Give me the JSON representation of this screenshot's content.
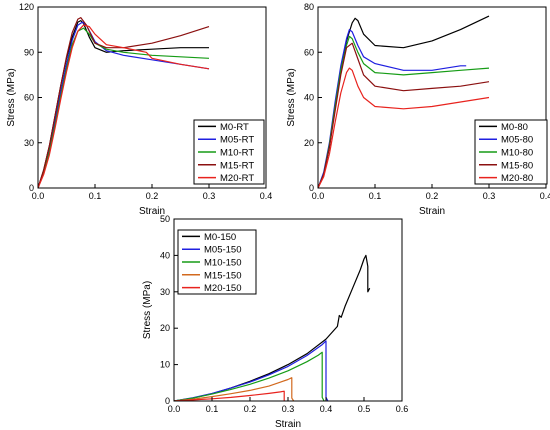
{
  "chart_data": [
    {
      "type": "line",
      "xlabel": "Strain",
      "ylabel": "Stress (MPa)",
      "xlim": [
        0,
        0.4
      ],
      "ylim": [
        0,
        120
      ],
      "xticks": [
        "0.0",
        "0.1",
        "0.2",
        "0.3",
        "0.4"
      ],
      "yticks": [
        "0",
        "30",
        "60",
        "90",
        "120"
      ],
      "grid": false,
      "legend_position": "bottom-right",
      "series": [
        {
          "name": "M0-RT",
          "color": "#000000",
          "x": [
            0,
            0.01,
            0.02,
            0.03,
            0.04,
            0.05,
            0.06,
            0.07,
            0.075,
            0.08,
            0.09,
            0.1,
            0.12,
            0.15,
            0.2,
            0.25,
            0.3
          ],
          "y": [
            0,
            12,
            28,
            48,
            68,
            86,
            100,
            110,
            111,
            109,
            100,
            93,
            90,
            91,
            92,
            93,
            93
          ]
        },
        {
          "name": "M05-RT",
          "color": "#1f1fe0",
          "x": [
            0,
            0.01,
            0.02,
            0.03,
            0.04,
            0.05,
            0.06,
            0.07,
            0.078,
            0.085,
            0.1,
            0.12,
            0.15,
            0.2,
            0.25,
            0.3
          ],
          "y": [
            0,
            11,
            26,
            45,
            64,
            82,
            98,
            108,
            110,
            108,
            97,
            91,
            88,
            85,
            82,
            79
          ]
        },
        {
          "name": "M10-RT",
          "color": "#169c16",
          "x": [
            0,
            0.01,
            0.02,
            0.03,
            0.04,
            0.05,
            0.06,
            0.07,
            0.08,
            0.09,
            0.1,
            0.12,
            0.15,
            0.2,
            0.25,
            0.3
          ],
          "y": [
            0,
            10,
            24,
            42,
            61,
            79,
            95,
            104,
            106,
            102,
            96,
            92,
            90,
            88,
            87,
            86
          ]
        },
        {
          "name": "M15-RT",
          "color": "#8b1010",
          "x": [
            0,
            0.01,
            0.02,
            0.03,
            0.04,
            0.05,
            0.06,
            0.07,
            0.075,
            0.085,
            0.1,
            0.12,
            0.15,
            0.2,
            0.25,
            0.3
          ],
          "y": [
            0,
            12,
            28,
            48,
            68,
            87,
            103,
            112,
            113,
            108,
            96,
            93,
            93,
            96,
            101,
            107
          ]
        },
        {
          "name": "M20-RT",
          "color": "#e8231e",
          "x": [
            0,
            0.01,
            0.02,
            0.03,
            0.04,
            0.05,
            0.06,
            0.07,
            0.08,
            0.09,
            0.1,
            0.12,
            0.15,
            0.19,
            0.2,
            0.25,
            0.3
          ],
          "y": [
            0,
            9,
            22,
            40,
            59,
            77,
            93,
            104,
            108,
            107,
            102,
            95,
            93,
            90,
            86,
            82,
            79
          ]
        }
      ]
    },
    {
      "type": "line",
      "xlabel": "Strain",
      "ylabel": "Stress (MPa)",
      "xlim": [
        0,
        0.4
      ],
      "ylim": [
        0,
        80
      ],
      "xticks": [
        "0.0",
        "0.1",
        "0.2",
        "0.3",
        "0.4"
      ],
      "yticks": [
        "0",
        "20",
        "40",
        "60",
        "80"
      ],
      "grid": false,
      "legend_position": "bottom-right",
      "series": [
        {
          "name": "M0-80",
          "color": "#000000",
          "x": [
            0,
            0.01,
            0.02,
            0.03,
            0.04,
            0.05,
            0.06,
            0.065,
            0.07,
            0.08,
            0.1,
            0.15,
            0.2,
            0.25,
            0.3
          ],
          "y": [
            0,
            6,
            18,
            36,
            52,
            65,
            73,
            75,
            74,
            68,
            63,
            62,
            65,
            70,
            76
          ]
        },
        {
          "name": "M05-80",
          "color": "#1f1fe0",
          "x": [
            0,
            0.01,
            0.02,
            0.03,
            0.04,
            0.05,
            0.055,
            0.06,
            0.07,
            0.08,
            0.1,
            0.15,
            0.2,
            0.25,
            0.26
          ],
          "y": [
            0,
            7,
            20,
            38,
            54,
            66,
            70,
            69,
            63,
            58,
            55,
            52,
            52,
            54,
            54
          ]
        },
        {
          "name": "M10-80",
          "color": "#169c16",
          "x": [
            0,
            0.01,
            0.02,
            0.03,
            0.04,
            0.05,
            0.055,
            0.06,
            0.07,
            0.08,
            0.1,
            0.15,
            0.2,
            0.25,
            0.3
          ],
          "y": [
            0,
            6,
            19,
            36,
            52,
            63,
            67,
            66,
            60,
            55,
            51,
            50,
            51,
            52,
            53
          ]
        },
        {
          "name": "M15-80",
          "color": "#8b1010",
          "x": [
            0,
            0.01,
            0.02,
            0.03,
            0.04,
            0.05,
            0.06,
            0.07,
            0.08,
            0.1,
            0.15,
            0.2,
            0.25,
            0.3
          ],
          "y": [
            0,
            6,
            18,
            34,
            50,
            62,
            64,
            57,
            50,
            45,
            43,
            44,
            45,
            47
          ]
        },
        {
          "name": "M20-80",
          "color": "#e8231e",
          "x": [
            0,
            0.01,
            0.02,
            0.03,
            0.04,
            0.05,
            0.055,
            0.06,
            0.07,
            0.08,
            0.1,
            0.15,
            0.2,
            0.25,
            0.3
          ],
          "y": [
            0,
            5,
            15,
            29,
            42,
            51,
            53,
            52,
            45,
            40,
            36,
            35,
            36,
            38,
            40
          ]
        }
      ]
    },
    {
      "type": "line",
      "xlabel": "Strain",
      "ylabel": "Stress (MPa)",
      "xlim": [
        0,
        0.6
      ],
      "ylim": [
        0,
        50
      ],
      "xticks": [
        "0.0",
        "0.1",
        "0.2",
        "0.3",
        "0.4",
        "0.5",
        "0.6"
      ],
      "yticks": [
        "0",
        "10",
        "20",
        "30",
        "40",
        "50"
      ],
      "grid": false,
      "legend_position": "top-left",
      "series": [
        {
          "name": "M0-150",
          "color": "#000000",
          "x": [
            0,
            0.05,
            0.1,
            0.15,
            0.2,
            0.25,
            0.3,
            0.35,
            0.4,
            0.43,
            0.435,
            0.44,
            0.45,
            0.47,
            0.49,
            0.5,
            0.505,
            0.51,
            0.51,
            0.515
          ],
          "y": [
            0,
            0.8,
            2,
            3.6,
            5.4,
            7.5,
            10,
            13,
            17,
            20.5,
            23.5,
            23,
            26,
            31,
            36,
            39,
            40,
            37,
            30,
            31
          ]
        },
        {
          "name": "M05-150",
          "color": "#1f1fe0",
          "x": [
            0,
            0.05,
            0.1,
            0.15,
            0.2,
            0.25,
            0.3,
            0.35,
            0.39,
            0.4,
            0.4,
            0.405
          ],
          "y": [
            0,
            0.9,
            2.1,
            3.6,
            5.2,
            7.2,
            9.5,
            12.5,
            15.5,
            16.5,
            1,
            0
          ]
        },
        {
          "name": "M10-150",
          "color": "#169c16",
          "x": [
            0,
            0.05,
            0.1,
            0.15,
            0.2,
            0.25,
            0.3,
            0.35,
            0.38,
            0.39,
            0.39,
            0.395
          ],
          "y": [
            0,
            0.8,
            1.9,
            3.2,
            4.6,
            6.3,
            8.3,
            10.8,
            12.6,
            13.4,
            1,
            0
          ]
        },
        {
          "name": "M15-150",
          "color": "#d2691e",
          "x": [
            0,
            0.05,
            0.1,
            0.15,
            0.2,
            0.25,
            0.3,
            0.31,
            0.31,
            0.315
          ],
          "y": [
            0,
            0.5,
            1.2,
            2,
            2.9,
            4.1,
            5.9,
            6.4,
            0.8,
            0
          ]
        },
        {
          "name": "M20-150",
          "color": "#e8231e",
          "x": [
            0,
            0.05,
            0.1,
            0.15,
            0.2,
            0.25,
            0.28,
            0.29,
            0.29
          ],
          "y": [
            0,
            0.3,
            0.6,
            1,
            1.5,
            2.1,
            2.5,
            2.7,
            0
          ]
        }
      ]
    }
  ]
}
